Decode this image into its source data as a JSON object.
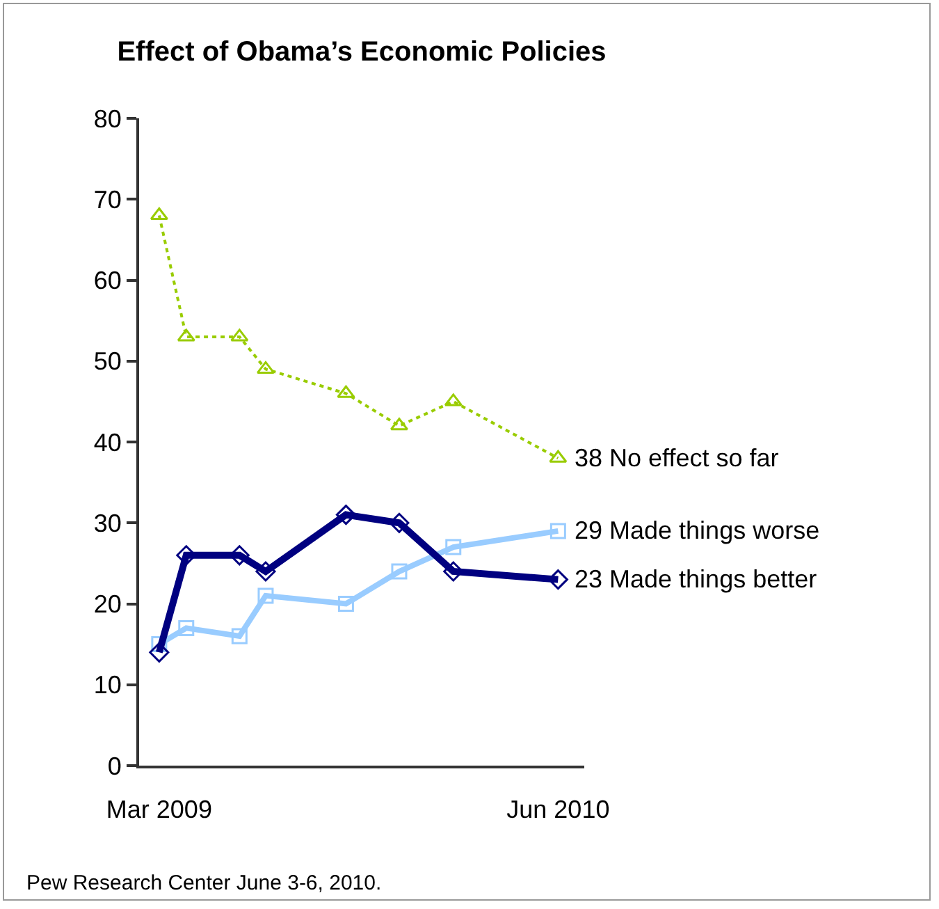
{
  "chart_data": {
    "type": "line",
    "title": "Effect of Obama’s Economic Policies",
    "x": [
      "2009-03",
      "2009-04",
      "2009-06",
      "2009-07",
      "2009-10",
      "2009-12",
      "2010-02",
      "2010-06"
    ],
    "series": [
      {
        "name": "No effect so far",
        "color": "#99cc00",
        "values": [
          68,
          53,
          53,
          49,
          46,
          42,
          45,
          38
        ],
        "marker": "triangle",
        "line_style": "dotted",
        "value_labels": [
          null,
          null,
          null,
          null,
          null,
          null,
          null,
          "38"
        ]
      },
      {
        "name": "Made things worse",
        "color": "#99ccff",
        "values": [
          15,
          17,
          16,
          21,
          20,
          24,
          27,
          29
        ],
        "marker": "square",
        "line_style": "solid",
        "value_labels": [
          null,
          null,
          null,
          null,
          null,
          null,
          null,
          "29"
        ]
      },
      {
        "name": "Made things better",
        "color": "#000080",
        "values": [
          14,
          26,
          26,
          24,
          31,
          30,
          24,
          23
        ],
        "marker": "diamond",
        "line_style": "solid",
        "value_labels": [
          null,
          null,
          null,
          null,
          null,
          null,
          null,
          "23"
        ]
      }
    ],
    "xlim": [
      "2009-02-06",
      "2010-07-01"
    ],
    "xticks": [
      {
        "value": "2009-03",
        "label": "Mar 2009"
      },
      {
        "value": "2010-06",
        "label": "Jun 2010"
      }
    ],
    "ylim": [
      0,
      80
    ],
    "yticks": [
      0,
      10,
      20,
      30,
      40,
      50,
      60,
      70,
      80
    ],
    "grid": false,
    "legend": false,
    "annotations": [
      "Pew Research Center June 3-6, 2010."
    ]
  }
}
